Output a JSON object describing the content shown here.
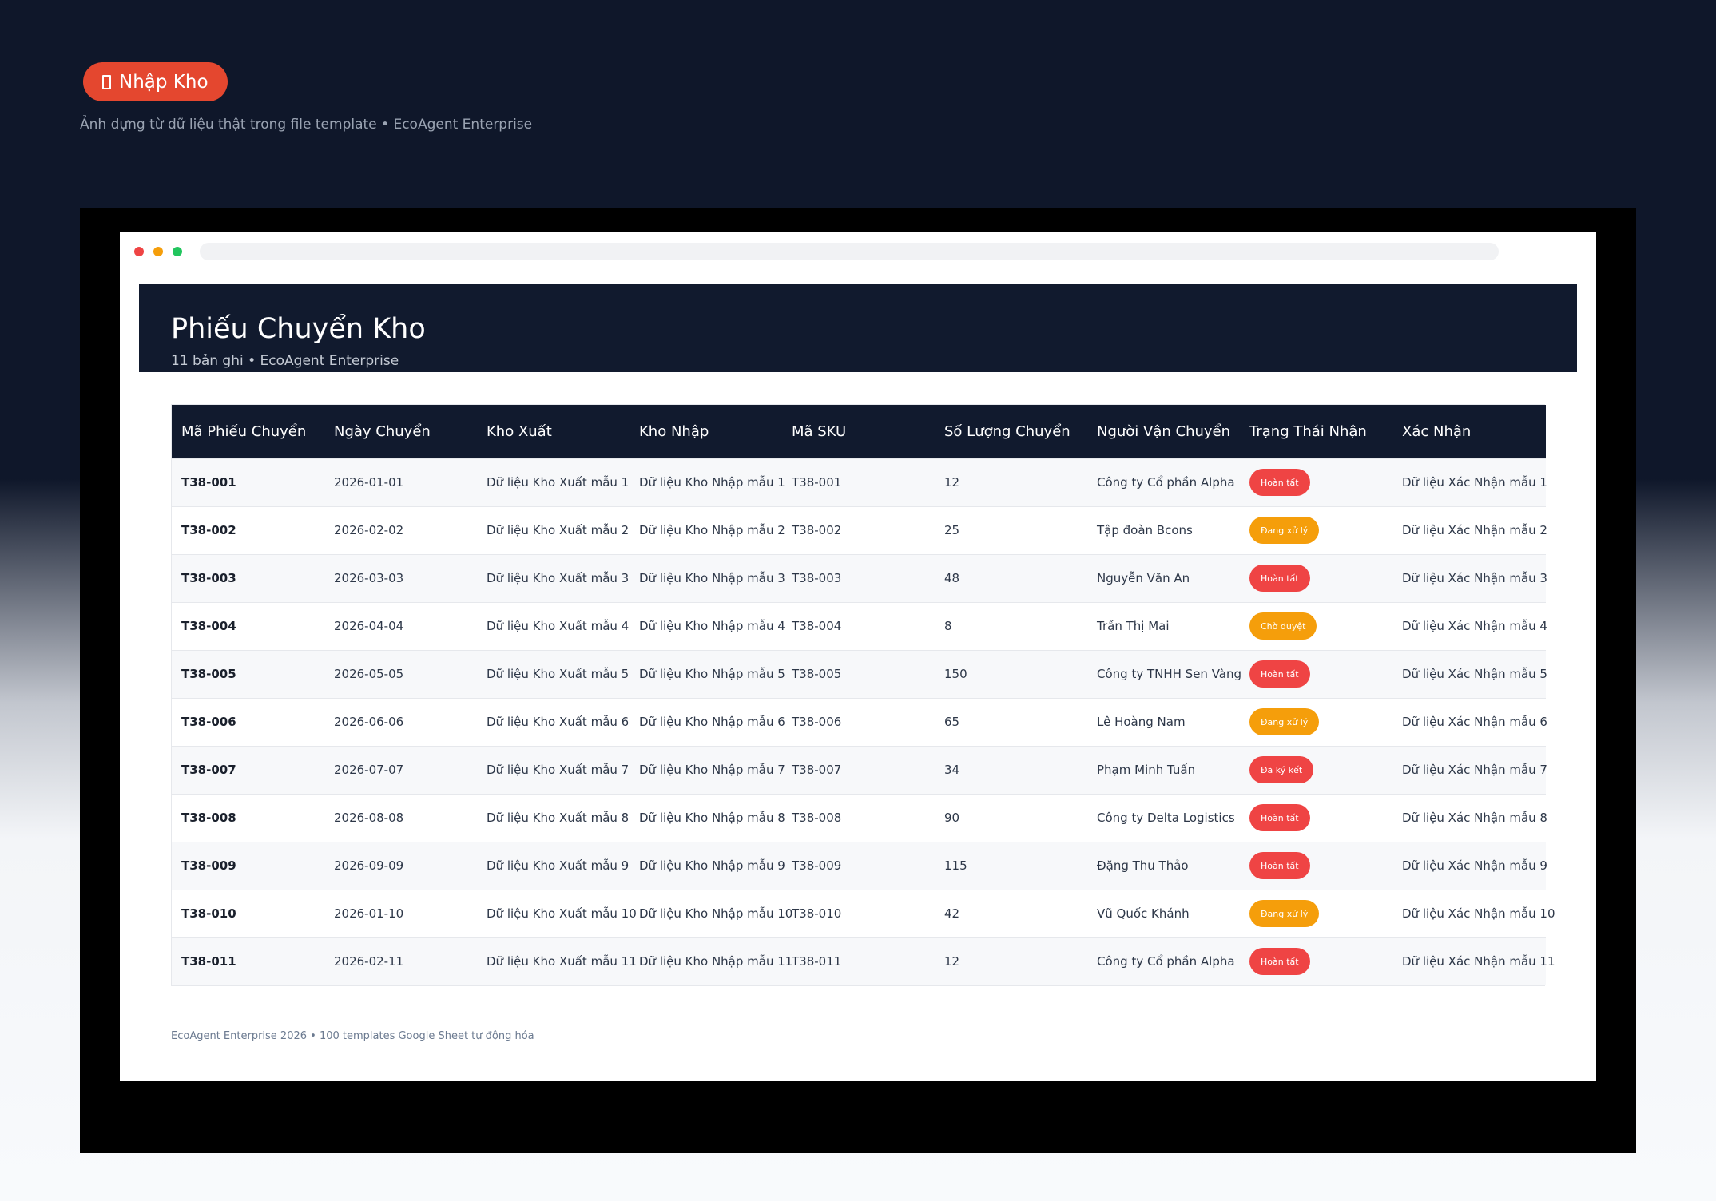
{
  "hero": {
    "badge_label": "Nhập Kho",
    "badge_icon": "box-icon",
    "subtitle": "Ảnh dựng từ dữ liệu thật trong file template • EcoAgent Enterprise"
  },
  "sheet": {
    "title": "Phiếu Chuyển Kho",
    "subtitle": "11 bản ghi • EcoAgent Enterprise"
  },
  "table": {
    "columns": [
      "Mã Phiếu Chuyển",
      "Ngày Chuyển",
      "Kho Xuất",
      "Kho Nhập",
      "Mã SKU",
      "Số Lượng Chuyển",
      "Người Vận Chuyển",
      "Trạng Thái Nhận",
      "Xác Nhận"
    ],
    "rows": [
      {
        "code": "T38-001",
        "date": "2026-01-01",
        "from": "Dữ liệu Kho Xuất mẫu 1",
        "to": "Dữ liệu Kho Nhập mẫu 1",
        "sku": "T38-001",
        "qty": "12",
        "carrier": "Công ty Cổ phần Alpha",
        "status": "Hoàn tất",
        "status_color": "#ef4444",
        "confirm": "Dữ liệu Xác Nhận mẫu 1"
      },
      {
        "code": "T38-002",
        "date": "2026-02-02",
        "from": "Dữ liệu Kho Xuất mẫu 2",
        "to": "Dữ liệu Kho Nhập mẫu 2",
        "sku": "T38-002",
        "qty": "25",
        "carrier": "Tập đoàn Bcons",
        "status": "Đang xử lý",
        "status_color": "#f59e0b",
        "confirm": "Dữ liệu Xác Nhận mẫu 2"
      },
      {
        "code": "T38-003",
        "date": "2026-03-03",
        "from": "Dữ liệu Kho Xuất mẫu 3",
        "to": "Dữ liệu Kho Nhập mẫu 3",
        "sku": "T38-003",
        "qty": "48",
        "carrier": "Nguyễn Văn An",
        "status": "Hoàn tất",
        "status_color": "#ef4444",
        "confirm": "Dữ liệu Xác Nhận mẫu 3"
      },
      {
        "code": "T38-004",
        "date": "2026-04-04",
        "from": "Dữ liệu Kho Xuất mẫu 4",
        "to": "Dữ liệu Kho Nhập mẫu 4",
        "sku": "T38-004",
        "qty": "8",
        "carrier": "Trần Thị Mai",
        "status": "Chờ duyệt",
        "status_color": "#f59e0b",
        "confirm": "Dữ liệu Xác Nhận mẫu 4"
      },
      {
        "code": "T38-005",
        "date": "2026-05-05",
        "from": "Dữ liệu Kho Xuất mẫu 5",
        "to": "Dữ liệu Kho Nhập mẫu 5",
        "sku": "T38-005",
        "qty": "150",
        "carrier": "Công ty TNHH Sen Vàng",
        "status": "Hoàn tất",
        "status_color": "#ef4444",
        "confirm": "Dữ liệu Xác Nhận mẫu 5"
      },
      {
        "code": "T38-006",
        "date": "2026-06-06",
        "from": "Dữ liệu Kho Xuất mẫu 6",
        "to": "Dữ liệu Kho Nhập mẫu 6",
        "sku": "T38-006",
        "qty": "65",
        "carrier": "Lê Hoàng Nam",
        "status": "Đang xử lý",
        "status_color": "#f59e0b",
        "confirm": "Dữ liệu Xác Nhận mẫu 6"
      },
      {
        "code": "T38-007",
        "date": "2026-07-07",
        "from": "Dữ liệu Kho Xuất mẫu 7",
        "to": "Dữ liệu Kho Nhập mẫu 7",
        "sku": "T38-007",
        "qty": "34",
        "carrier": "Phạm Minh Tuấn",
        "status": "Đã ký kết",
        "status_color": "#ef4444",
        "confirm": "Dữ liệu Xác Nhận mẫu 7"
      },
      {
        "code": "T38-008",
        "date": "2026-08-08",
        "from": "Dữ liệu Kho Xuất mẫu 8",
        "to": "Dữ liệu Kho Nhập mẫu 8",
        "sku": "T38-008",
        "qty": "90",
        "carrier": "Công ty Delta Logistics",
        "status": "Hoàn tất",
        "status_color": "#ef4444",
        "confirm": "Dữ liệu Xác Nhận mẫu 8"
      },
      {
        "code": "T38-009",
        "date": "2026-09-09",
        "from": "Dữ liệu Kho Xuất mẫu 9",
        "to": "Dữ liệu Kho Nhập mẫu 9",
        "sku": "T38-009",
        "qty": "115",
        "carrier": "Đặng Thu Thảo",
        "status": "Hoàn tất",
        "status_color": "#ef4444",
        "confirm": "Dữ liệu Xác Nhận mẫu 9"
      },
      {
        "code": "T38-010",
        "date": "2026-01-10",
        "from": "Dữ liệu Kho Xuất mẫu 10",
        "to": "Dữ liệu Kho Nhập mẫu 10",
        "sku": "T38-010",
        "qty": "42",
        "carrier": "Vũ Quốc Khánh",
        "status": "Đang xử lý",
        "status_color": "#f59e0b",
        "confirm": "Dữ liệu Xác Nhận mẫu 10"
      },
      {
        "code": "T38-011",
        "date": "2026-02-11",
        "from": "Dữ liệu Kho Xuất mẫu 11",
        "to": "Dữ liệu Kho Nhập mẫu 11",
        "sku": "T38-011",
        "qty": "12",
        "carrier": "Công ty Cổ phần Alpha",
        "status": "Hoàn tất",
        "status_color": "#ef4444",
        "confirm": "Dữ liệu Xác Nhận mẫu 11"
      }
    ]
  },
  "footer": {
    "note": "EcoAgent Enterprise 2026 • 100 templates Google Sheet tự động hóa"
  }
}
